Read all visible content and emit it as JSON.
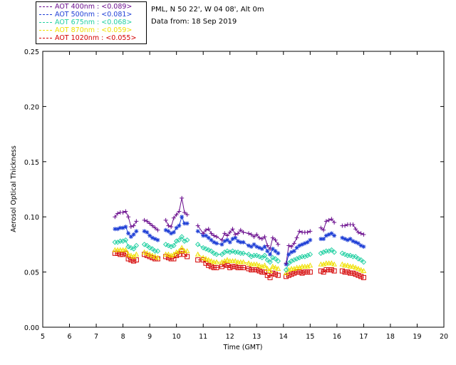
{
  "legend": [
    {
      "label": "AOT  400nm : <0.089>",
      "color": "#6b0f8e"
    },
    {
      "label": "AOT  500nm : <0.081>",
      "color": "#1f3fd6"
    },
    {
      "label": "AOT  675nm : <0.068>",
      "color": "#22d0a2"
    },
    {
      "label": "AOT  870nm : <0.059>",
      "color": "#f0e000"
    },
    {
      "label": "AOT 1020nm : <0.055>",
      "color": "#d40000"
    }
  ],
  "site_label": "PML, N 50 22', W 04 08', Alt 0m",
  "date_label": "Data from: 18 Sep 2019",
  "chart_data": {
    "type": "scatter",
    "xlabel": "Time (GMT)",
    "ylabel": "Aerosol Optical Thickness",
    "xlim": [
      5,
      20
    ],
    "ylim": [
      0,
      0.25
    ],
    "xticks": [
      "5",
      "6",
      "7",
      "8",
      "9",
      "10",
      "11",
      "12",
      "13",
      "14",
      "15",
      "16",
      "17",
      "18",
      "19",
      "20"
    ],
    "yticks": [
      "0.00",
      "0.05",
      "0.10",
      "0.15",
      "0.20",
      "0.25"
    ],
    "x": [
      7.7,
      7.8,
      7.9,
      8.0,
      8.1,
      8.2,
      8.3,
      8.4,
      8.5,
      8.8,
      8.9,
      9.0,
      9.1,
      9.2,
      9.3,
      9.6,
      9.7,
      9.8,
      9.9,
      10.0,
      10.1,
      10.2,
      10.3,
      10.4,
      10.8,
      11.0,
      11.1,
      11.2,
      11.3,
      11.4,
      11.5,
      11.7,
      11.8,
      11.9,
      12.0,
      12.1,
      12.2,
      12.3,
      12.4,
      12.5,
      12.7,
      12.8,
      12.9,
      13.0,
      13.1,
      13.2,
      13.3,
      13.4,
      13.5,
      13.6,
      13.7,
      13.8,
      14.1,
      14.2,
      14.3,
      14.4,
      14.5,
      14.6,
      14.7,
      14.8,
      14.9,
      15.0,
      15.4,
      15.5,
      15.6,
      15.7,
      15.8,
      15.9,
      16.2,
      16.3,
      16.4,
      16.5,
      16.6,
      16.7,
      16.8,
      16.9,
      17.0
    ],
    "series": [
      {
        "name": "AOT  400nm",
        "marker": "plus",
        "color": "#6b0f8e",
        "values": [
          0.1,
          0.103,
          0.104,
          0.104,
          0.105,
          0.1,
          0.091,
          0.092,
          0.096,
          0.097,
          0.096,
          0.094,
          0.092,
          0.09,
          0.088,
          0.097,
          0.092,
          0.091,
          0.099,
          0.102,
          0.105,
          0.117,
          0.104,
          0.102,
          0.092,
          0.085,
          0.088,
          0.089,
          0.085,
          0.083,
          0.082,
          0.079,
          0.085,
          0.083,
          0.086,
          0.089,
          0.084,
          0.085,
          0.088,
          0.086,
          0.085,
          0.084,
          0.082,
          0.084,
          0.081,
          0.08,
          0.082,
          0.074,
          0.071,
          0.081,
          0.079,
          0.075,
          0.058,
          0.074,
          0.073,
          0.076,
          0.081,
          0.087,
          0.086,
          0.086,
          0.086,
          0.087,
          0.09,
          0.088,
          0.096,
          0.097,
          0.098,
          0.095,
          0.092,
          0.092,
          0.093,
          0.093,
          0.093,
          0.089,
          0.086,
          0.085,
          0.084
        ]
      },
      {
        "name": "AOT  500nm",
        "marker": "star",
        "color": "#1f3fd6",
        "values": [
          0.089,
          0.089,
          0.09,
          0.09,
          0.091,
          0.085,
          0.082,
          0.084,
          0.087,
          0.087,
          0.086,
          0.083,
          0.081,
          0.08,
          0.079,
          0.088,
          0.087,
          0.085,
          0.086,
          0.09,
          0.092,
          0.1,
          0.094,
          0.094,
          0.087,
          0.083,
          0.083,
          0.081,
          0.079,
          0.077,
          0.076,
          0.075,
          0.078,
          0.079,
          0.077,
          0.08,
          0.081,
          0.078,
          0.077,
          0.077,
          0.074,
          0.073,
          0.075,
          0.073,
          0.072,
          0.071,
          0.073,
          0.069,
          0.066,
          0.071,
          0.069,
          0.067,
          0.057,
          0.066,
          0.068,
          0.069,
          0.072,
          0.074,
          0.075,
          0.076,
          0.077,
          0.079,
          0.08,
          0.08,
          0.083,
          0.084,
          0.085,
          0.083,
          0.081,
          0.08,
          0.079,
          0.08,
          0.078,
          0.077,
          0.076,
          0.074,
          0.073
        ]
      },
      {
        "name": "AOT  675nm",
        "marker": "diamond",
        "color": "#22d0a2",
        "values": [
          0.077,
          0.077,
          0.078,
          0.078,
          0.079,
          0.073,
          0.072,
          0.071,
          0.074,
          0.075,
          0.074,
          0.072,
          0.071,
          0.069,
          0.069,
          0.075,
          0.074,
          0.073,
          0.074,
          0.078,
          0.079,
          0.082,
          0.078,
          0.079,
          0.075,
          0.072,
          0.071,
          0.07,
          0.069,
          0.067,
          0.066,
          0.066,
          0.068,
          0.069,
          0.068,
          0.069,
          0.068,
          0.068,
          0.067,
          0.067,
          0.066,
          0.064,
          0.065,
          0.065,
          0.064,
          0.063,
          0.065,
          0.061,
          0.059,
          0.063,
          0.062,
          0.06,
          0.052,
          0.058,
          0.06,
          0.061,
          0.062,
          0.063,
          0.064,
          0.064,
          0.065,
          0.066,
          0.067,
          0.068,
          0.069,
          0.069,
          0.07,
          0.068,
          0.067,
          0.066,
          0.065,
          0.065,
          0.064,
          0.064,
          0.062,
          0.061,
          0.059
        ]
      },
      {
        "name": "AOT  870nm",
        "marker": "triangle",
        "color": "#f0e000",
        "values": [
          0.07,
          0.07,
          0.07,
          0.07,
          0.07,
          0.066,
          0.065,
          0.064,
          0.066,
          0.068,
          0.067,
          0.066,
          0.065,
          0.064,
          0.063,
          0.066,
          0.066,
          0.065,
          0.066,
          0.068,
          0.069,
          0.072,
          0.069,
          0.069,
          0.066,
          0.063,
          0.062,
          0.061,
          0.06,
          0.059,
          0.059,
          0.059,
          0.06,
          0.061,
          0.06,
          0.06,
          0.06,
          0.059,
          0.059,
          0.059,
          0.058,
          0.057,
          0.057,
          0.057,
          0.056,
          0.055,
          0.056,
          0.053,
          0.051,
          0.055,
          0.054,
          0.053,
          0.049,
          0.052,
          0.053,
          0.053,
          0.054,
          0.054,
          0.055,
          0.055,
          0.055,
          0.056,
          0.057,
          0.057,
          0.058,
          0.058,
          0.058,
          0.057,
          0.057,
          0.056,
          0.056,
          0.055,
          0.055,
          0.054,
          0.053,
          0.052,
          0.051
        ]
      },
      {
        "name": "AOT 1020nm",
        "marker": "square",
        "color": "#d40000",
        "values": [
          0.067,
          0.067,
          0.066,
          0.066,
          0.067,
          0.062,
          0.061,
          0.06,
          0.061,
          0.066,
          0.065,
          0.064,
          0.063,
          0.062,
          0.062,
          0.064,
          0.063,
          0.062,
          0.062,
          0.065,
          0.066,
          0.069,
          0.066,
          0.064,
          0.061,
          0.061,
          0.058,
          0.056,
          0.055,
          0.054,
          0.054,
          0.055,
          0.057,
          0.056,
          0.054,
          0.055,
          0.055,
          0.054,
          0.054,
          0.054,
          0.053,
          0.052,
          0.052,
          0.052,
          0.051,
          0.05,
          0.05,
          0.047,
          0.045,
          0.049,
          0.048,
          0.047,
          0.046,
          0.047,
          0.048,
          0.049,
          0.05,
          0.05,
          0.049,
          0.05,
          0.05,
          0.05,
          0.051,
          0.05,
          0.052,
          0.052,
          0.052,
          0.051,
          0.051,
          0.05,
          0.05,
          0.049,
          0.049,
          0.048,
          0.047,
          0.046,
          0.045
        ]
      }
    ]
  }
}
